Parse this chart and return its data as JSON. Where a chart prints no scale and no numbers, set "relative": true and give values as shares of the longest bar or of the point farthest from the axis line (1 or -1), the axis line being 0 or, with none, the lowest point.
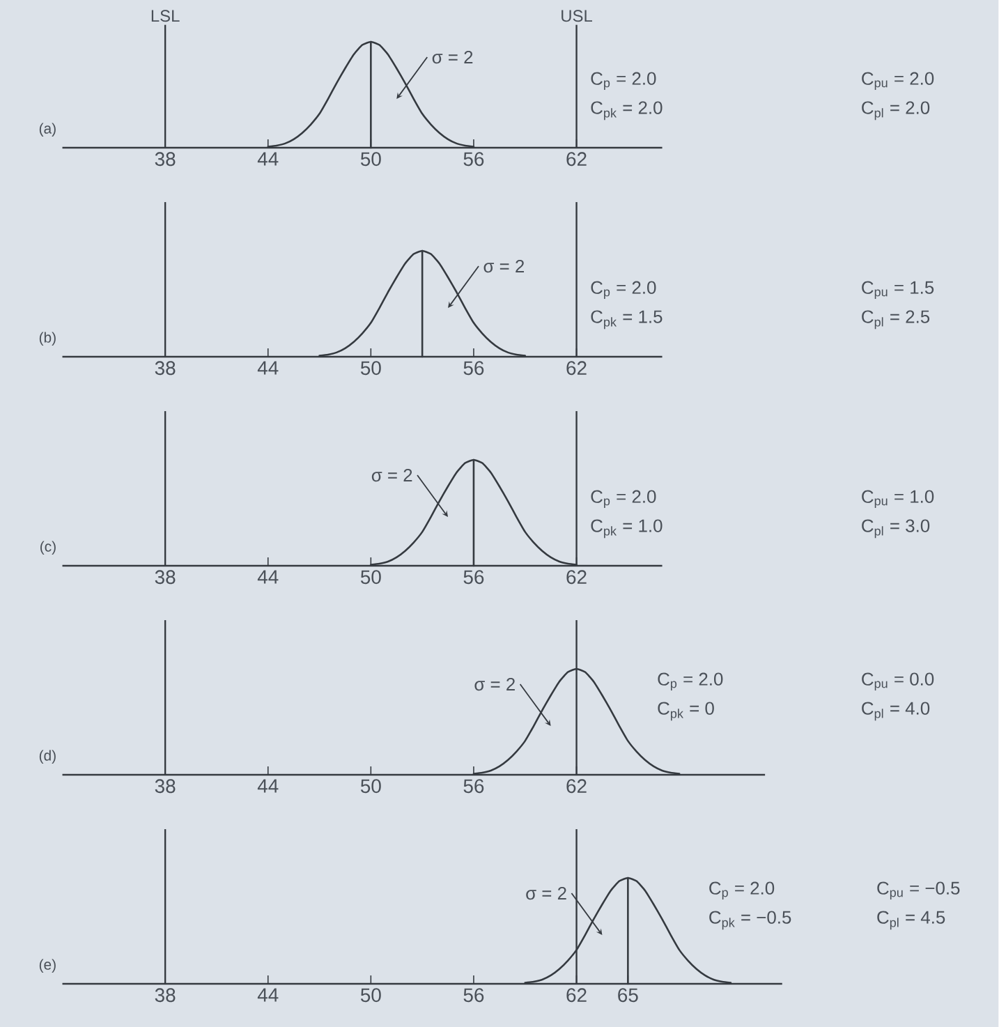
{
  "chart_data": [
    {
      "type": "line",
      "title": "(a)",
      "relative": true,
      "xlim": [
        32,
        67
      ],
      "xticks": [
        38,
        44,
        50,
        56,
        62
      ],
      "series": [
        {
          "x": [
            44,
            44.5,
            45,
            45.5,
            46,
            46.5,
            47,
            47.5,
            48,
            48.5,
            49,
            49.5,
            50,
            50.5,
            51,
            51.5,
            52,
            52.5,
            53,
            53.5,
            54,
            54.5,
            55,
            55.5,
            56
          ],
          "values": [
            0.01,
            0.02,
            0.04,
            0.08,
            0.14,
            0.22,
            0.32,
            0.46,
            0.61,
            0.75,
            0.88,
            0.97,
            1,
            0.97,
            0.88,
            0.75,
            0.61,
            0.46,
            0.32,
            0.22,
            0.14,
            0.08,
            0.04,
            0.02,
            0.01
          ],
          "color": "#353a40"
        },
        {
          "x": [
            50,
            50
          ],
          "values": [
            0,
            1
          ],
          "color": "#353a40"
        }
      ],
      "ref_lines": [
        {
          "axis": "x",
          "value": 38,
          "label": "LSL",
          "color": "#353a40"
        },
        {
          "axis": "x",
          "value": 62,
          "label": "USL",
          "color": "#353a40"
        }
      ],
      "annotations": [
        "C$_{p}$ = 2.0",
        "C$_{pk}$ = 2.0",
        "C$_{pu}$ = 2.0",
        "C$_{pl}$ = 2.0",
        "σ = 2"
      ]
    },
    {
      "type": "line",
      "title": "(b)",
      "relative": true,
      "xlim": [
        32,
        67
      ],
      "xticks": [
        38,
        44,
        50,
        56,
        62
      ],
      "series": [
        {
          "x": [
            47,
            47.5,
            48,
            48.5,
            49,
            49.5,
            50,
            50.5,
            51,
            51.5,
            52,
            52.5,
            53,
            53.5,
            54,
            54.5,
            55,
            55.5,
            56,
            56.5,
            57,
            57.5,
            58,
            58.5,
            59
          ],
          "values": [
            0.01,
            0.02,
            0.04,
            0.08,
            0.14,
            0.22,
            0.32,
            0.46,
            0.61,
            0.75,
            0.88,
            0.97,
            1,
            0.97,
            0.88,
            0.75,
            0.61,
            0.46,
            0.32,
            0.22,
            0.14,
            0.08,
            0.04,
            0.02,
            0.01
          ],
          "color": "#353a40"
        },
        {
          "x": [
            53,
            53
          ],
          "values": [
            0,
            1
          ],
          "color": "#353a40"
        }
      ],
      "ref_lines": [
        {
          "axis": "x",
          "value": 38,
          "color": "#353a40"
        },
        {
          "axis": "x",
          "value": 62,
          "color": "#353a40"
        }
      ],
      "annotations": [
        "C$_{p}$ = 2.0",
        "C$_{pk}$ = 1.5",
        "C$_{pu}$ = 1.5",
        "C$_{pl}$ = 2.5",
        "σ = 2"
      ]
    },
    {
      "type": "line",
      "title": "(c)",
      "relative": true,
      "xlim": [
        32,
        67
      ],
      "xticks": [
        38,
        44,
        50,
        56,
        62
      ],
      "series": [
        {
          "x": [
            50,
            50.5,
            51,
            51.5,
            52,
            52.5,
            53,
            53.5,
            54,
            54.5,
            55,
            55.5,
            56,
            56.5,
            57,
            57.5,
            58,
            58.5,
            59,
            59.5,
            60,
            60.5,
            61,
            61.5,
            62
          ],
          "values": [
            0.01,
            0.02,
            0.04,
            0.08,
            0.14,
            0.22,
            0.32,
            0.46,
            0.61,
            0.75,
            0.88,
            0.97,
            1,
            0.97,
            0.88,
            0.75,
            0.61,
            0.46,
            0.32,
            0.22,
            0.14,
            0.08,
            0.04,
            0.02,
            0.01
          ],
          "color": "#353a40"
        },
        {
          "x": [
            56,
            56
          ],
          "values": [
            0,
            1
          ],
          "color": "#353a40"
        }
      ],
      "ref_lines": [
        {
          "axis": "x",
          "value": 38,
          "color": "#353a40"
        },
        {
          "axis": "x",
          "value": 62,
          "color": "#353a40"
        }
      ],
      "annotations": [
        "C$_{p}$ = 2.0",
        "C$_{pk}$ = 1.0",
        "C$_{pu}$ = 1.0",
        "C$_{pl}$ = 3.0",
        "σ = 2"
      ]
    },
    {
      "type": "line",
      "title": "(d)",
      "relative": true,
      "xlim": [
        32,
        73
      ],
      "xticks": [
        38,
        44,
        50,
        56,
        62
      ],
      "series": [
        {
          "x": [
            56,
            56.5,
            57,
            57.5,
            58,
            58.5,
            59,
            59.5,
            60,
            60.5,
            61,
            61.5,
            62,
            62.5,
            63,
            63.5,
            64,
            64.5,
            65,
            65.5,
            66,
            66.5,
            67,
            67.5,
            68
          ],
          "values": [
            0.01,
            0.02,
            0.04,
            0.08,
            0.14,
            0.22,
            0.32,
            0.46,
            0.61,
            0.75,
            0.88,
            0.97,
            1,
            0.97,
            0.88,
            0.75,
            0.61,
            0.46,
            0.32,
            0.22,
            0.14,
            0.08,
            0.04,
            0.02,
            0.01
          ],
          "color": "#353a40"
        }
      ],
      "ref_lines": [
        {
          "axis": "x",
          "value": 38,
          "color": "#353a40"
        },
        {
          "axis": "x",
          "value": 62,
          "color": "#353a40"
        }
      ],
      "annotations": [
        "C$_{p}$ = 2.0",
        "C$_{pk}$ = 0",
        "C$_{pu}$ = 0.0",
        "C$_{pl}$ = 4.0",
        "σ = 2"
      ]
    },
    {
      "type": "line",
      "title": "(e)",
      "relative": true,
      "xlim": [
        32,
        74
      ],
      "xticks": [
        38,
        44,
        50,
        56,
        62,
        65
      ],
      "series": [
        {
          "x": [
            59,
            59.5,
            60,
            60.5,
            61,
            61.5,
            62,
            62.5,
            63,
            63.5,
            64,
            64.5,
            65,
            65.5,
            66,
            66.5,
            67,
            67.5,
            68,
            68.5,
            69,
            69.5,
            70,
            70.5,
            71
          ],
          "values": [
            0.01,
            0.02,
            0.04,
            0.08,
            0.14,
            0.22,
            0.32,
            0.46,
            0.61,
            0.75,
            0.88,
            0.97,
            1,
            0.97,
            0.88,
            0.75,
            0.61,
            0.46,
            0.32,
            0.22,
            0.14,
            0.08,
            0.04,
            0.02,
            0.01
          ],
          "color": "#353a40"
        },
        {
          "x": [
            65,
            65
          ],
          "values": [
            0,
            1
          ],
          "color": "#353a40"
        }
      ],
      "ref_lines": [
        {
          "axis": "x",
          "value": 38,
          "color": "#353a40"
        },
        {
          "axis": "x",
          "value": 62,
          "color": "#353a40"
        }
      ],
      "annotations": [
        "C$_{p}$ = 2.0",
        "C$_{pk}$ = −0.5",
        "C$_{pu}$ = −0.5",
        "C$_{pl}$ = 4.5",
        "σ = 2"
      ]
    }
  ]
}
